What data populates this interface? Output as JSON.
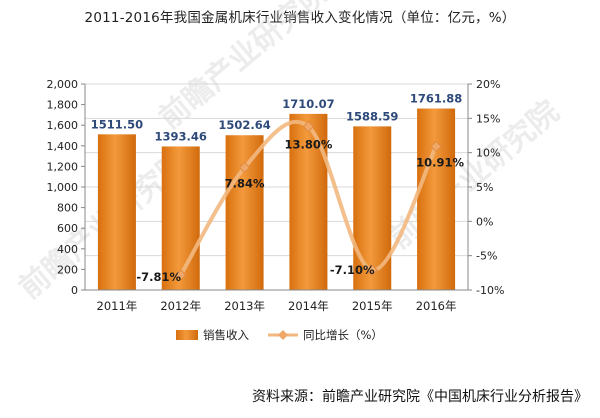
{
  "title": "2011-2016年我国金属机床行业销售收入变化情况（单位：亿元，%）",
  "source": "资料来源：前瞻产业研究院《中国机床行业分析报告》",
  "watermark": "前瞻产业研究院",
  "colors": {
    "bar": "#e8821e",
    "bar_dark": "#c4620a",
    "line": "#f2b880",
    "marker": "#f0a868",
    "grid": "#d9d9d9"
  },
  "chart_data": {
    "type": "bar",
    "categories": [
      "2011年",
      "2012年",
      "2013年",
      "2014年",
      "2015年",
      "2016年"
    ],
    "series": [
      {
        "name": "销售收入",
        "type": "bar",
        "axis": "left",
        "values": [
          1511.5,
          1393.46,
          1502.64,
          1710.07,
          1588.59,
          1761.88
        ],
        "labels": [
          "1511.50",
          "1393.46",
          "1502.64",
          "1710.07",
          "1588.59",
          "1761.88"
        ]
      },
      {
        "name": "同比增长（%）",
        "type": "line",
        "axis": "right",
        "values": [
          null,
          -7.81,
          7.84,
          13.8,
          -7.1,
          10.91
        ],
        "labels": [
          "",
          "-7.81%",
          "7.84%",
          "13.80%",
          "-7.10%",
          "10.91%"
        ]
      }
    ],
    "y_left": {
      "min": 0,
      "max": 2000,
      "step": 200,
      "ticks": [
        "0",
        "200",
        "400",
        "600",
        "800",
        "1,000",
        "1,200",
        "1,400",
        "1,600",
        "1,800",
        "2,000"
      ]
    },
    "y_right": {
      "min": -10,
      "max": 20,
      "step": 5,
      "ticks": [
        "-10%",
        "-5%",
        "0%",
        "5%",
        "10%",
        "15%",
        "20%"
      ]
    },
    "grid": true,
    "legend": "bottom"
  }
}
